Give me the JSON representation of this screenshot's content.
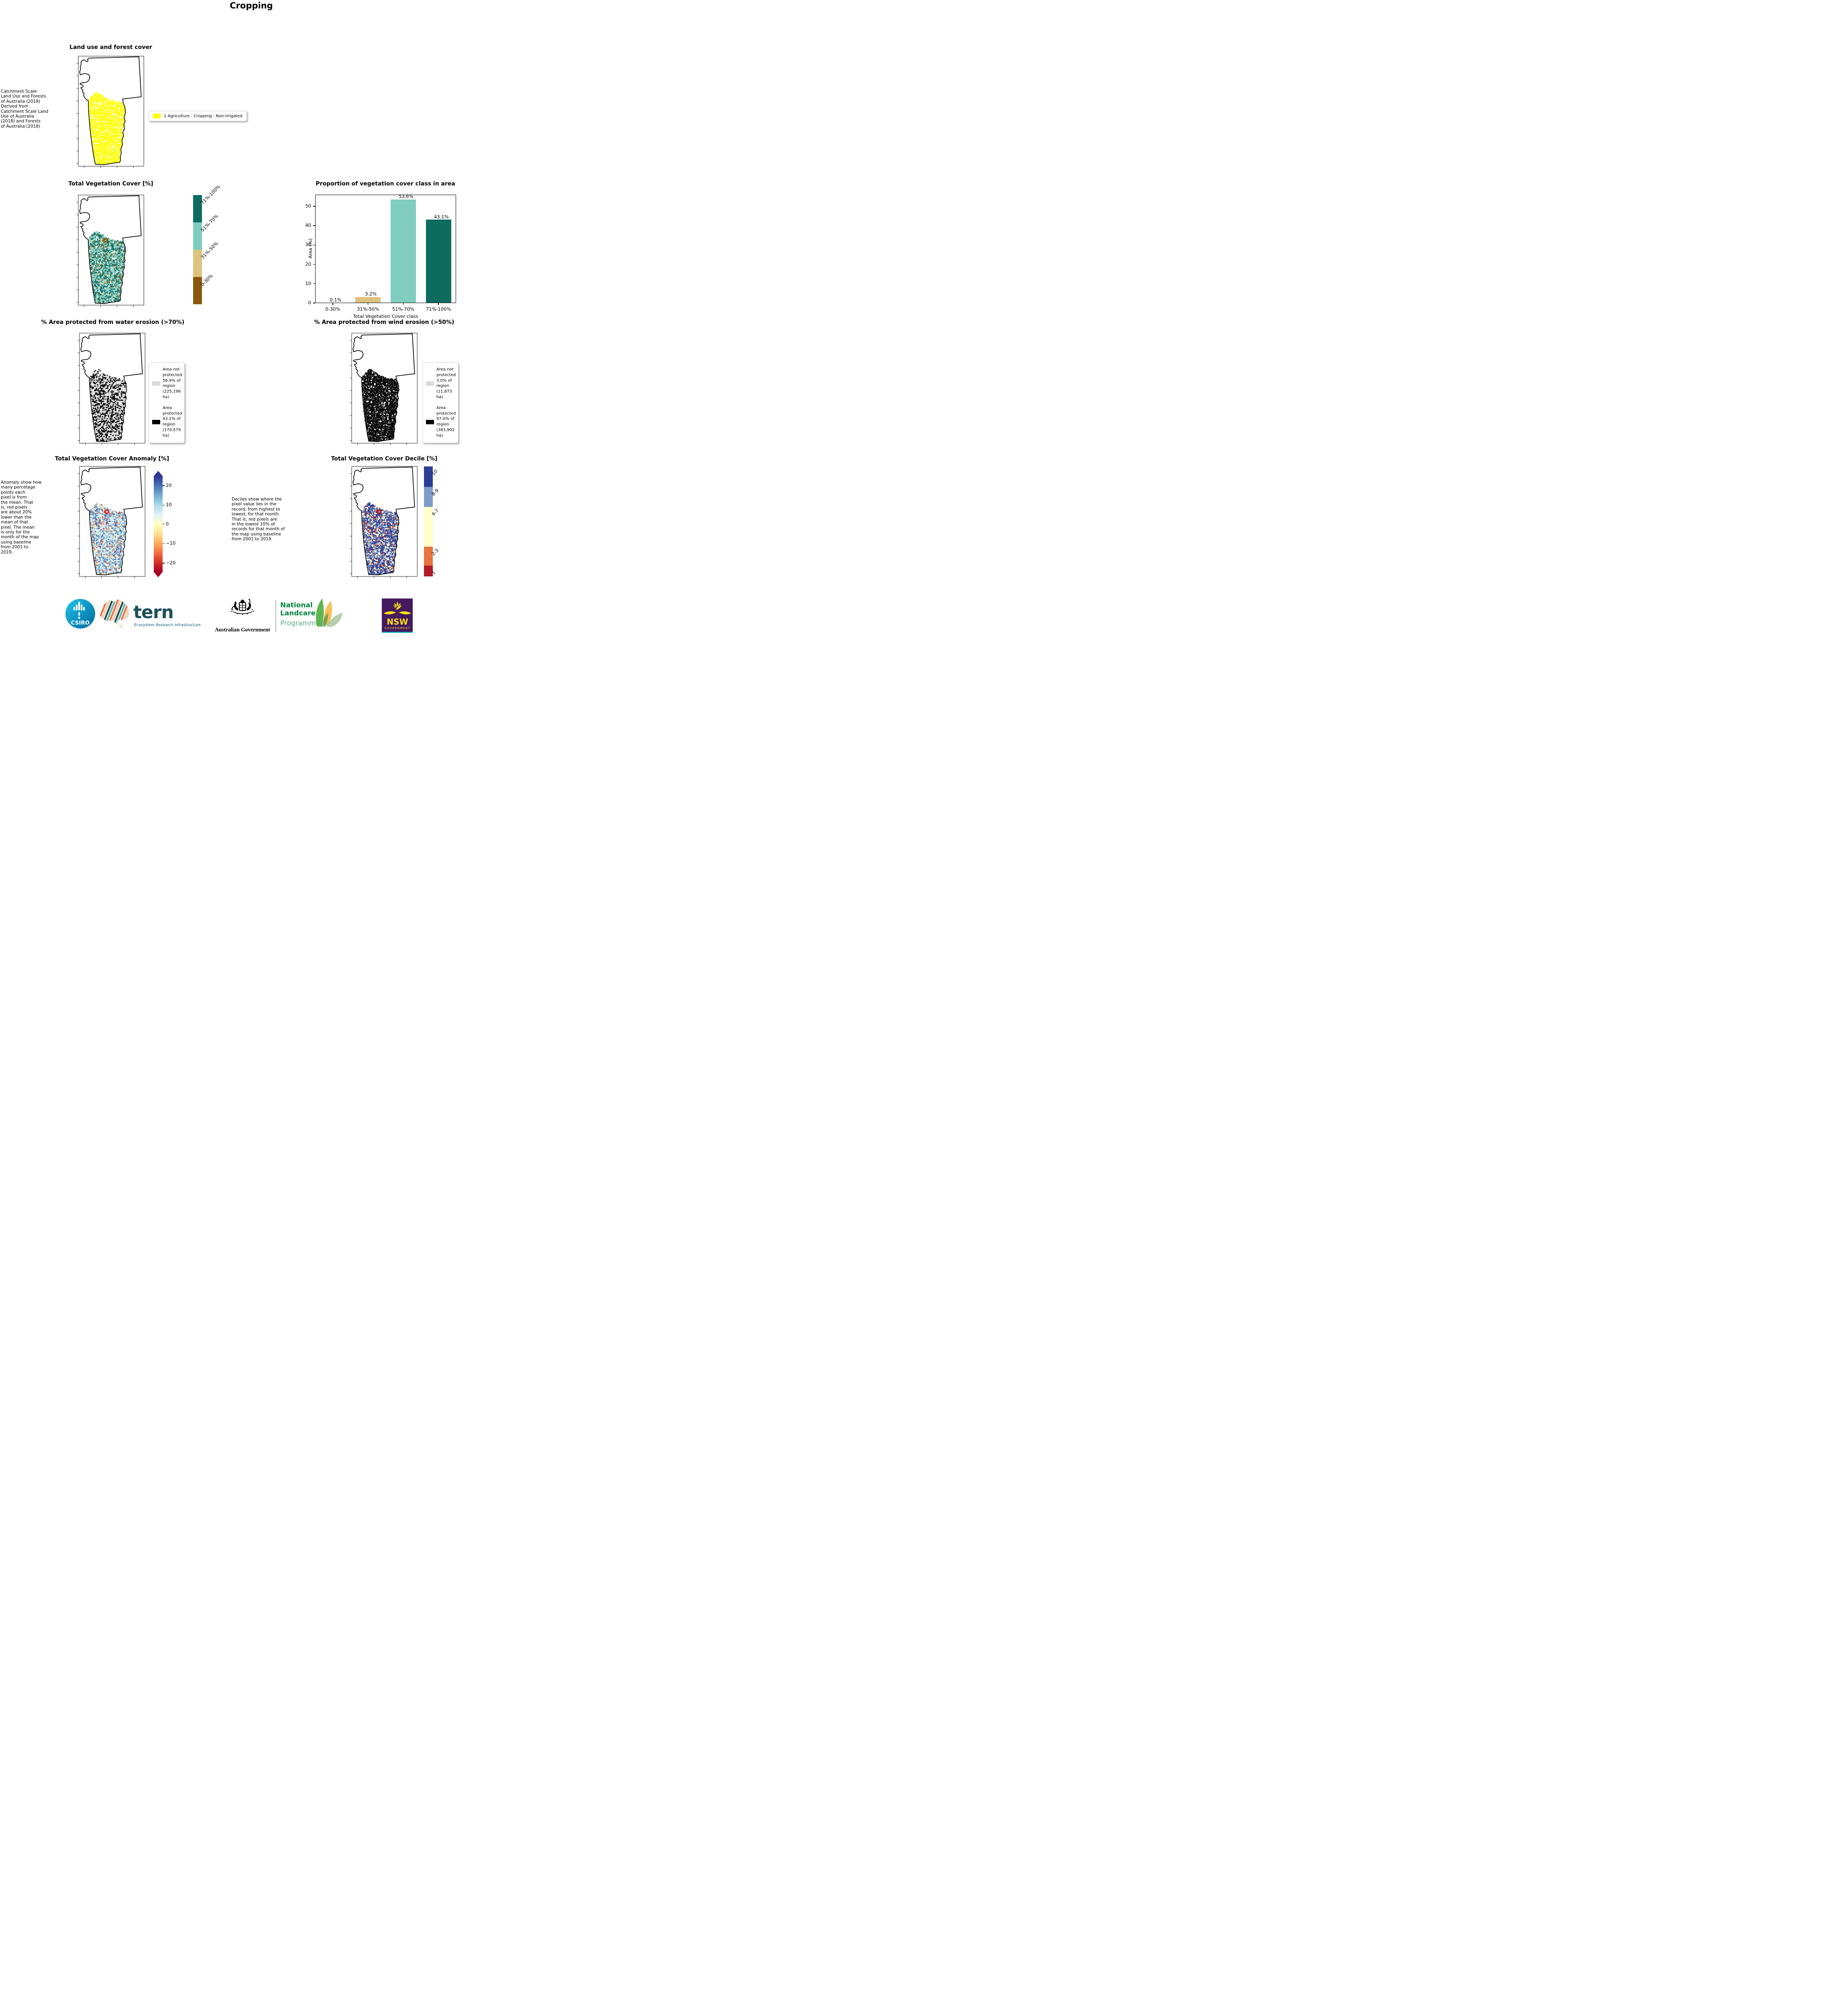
{
  "page_title": "Cropping",
  "panels": {
    "landuse": {
      "title": "Land use and forest cover",
      "caption": " Catchment Scale\nLand Use and Forests\nof Australia (2018)\nDerived from\nCatchment Scale Land\nUse of Australia\n(2018) and Forests\nof Australia (2018)",
      "legend": {
        "swatch_color": "#ffff00",
        "label": "1 Agriculture - Cropping - Non-irrigated"
      }
    },
    "tvc": {
      "title": "Total Vegetation Cover [%]",
      "colorbar": {
        "classes": [
          {
            "label": "71%-100%",
            "color": "#0d6b60"
          },
          {
            "label": "51%-70%",
            "color": "#7fcdbf"
          },
          {
            "label": "31%-50%",
            "color": "#dec37e"
          },
          {
            "label": "0-30%",
            "color": "#8a570c"
          }
        ]
      }
    },
    "water": {
      "title": "% Area protected from water erosion (>70%)",
      "legend": [
        {
          "color": "#d9d9d9",
          "label": "Area not\nprotected\n56.9% of\nregion\n(225,196\nha)"
        },
        {
          "color": "#000000",
          "label": "Area\nprotected\n43.1% of\nregion\n(170,579\nha)"
        }
      ]
    },
    "wind": {
      "title": "% Area protected from wind erosion (>50%)",
      "legend": [
        {
          "color": "#d9d9d9",
          "label": "Area not\nprotected\n3.0% of\nregion\n(11,873\nha)"
        },
        {
          "color": "#000000",
          "label": "Area\nprotected\n97.0% of\nregion\n(383,902\nha)"
        }
      ]
    },
    "anomaly": {
      "title": "Total Vegetation Cover Anomaly [%]",
      "caption": "Anomaly show how\nmany percetage\npoints each\npixel is from\nthe mean. That\nis, red pixels\nare about 20%\nlower than the\nmean of that\npixel. The mean\nis only for the\nmonth of the map\nusing baseline\nfrom 2001 to\n2019.",
      "colorbar": {
        "ticks": [
          "20",
          "10",
          "0",
          "−10",
          "−20"
        ],
        "gradient": [
          "#313695",
          "#4575b4",
          "#74add1",
          "#abd9e9",
          "#e0f3f8",
          "#ffffbf",
          "#fee090",
          "#fdae61",
          "#f46d43",
          "#d73027",
          "#a50026"
        ]
      }
    },
    "decile": {
      "title": "Total Vegetation Cover Decile [%]",
      "caption": "Deciles show where the\npixel value lies in the\nrecord, from highest to\nlowest, for that month.\nThat is, red pixels are\nin the lowest 10% of\nrecords for that month of\nthe map using baseline\nfrom 2001 to 2019.",
      "colorbar": {
        "classes": [
          {
            "label": "10",
            "color": "#2c3e94",
            "frac": 0.185
          },
          {
            "label": "8-9",
            "color": "#7d9dc9",
            "frac": 0.185
          },
          {
            "label": "4-7",
            "color": "#fffdc8",
            "frac": 0.36
          },
          {
            "label": "2-3",
            "color": "#e8743f",
            "frac": 0.17
          },
          {
            "label": "1",
            "color": "#b01b25",
            "frac": 0.1
          }
        ]
      }
    }
  },
  "chart_data": [
    {
      "type": "bar",
      "title": "Proportion of vegetation cover class in area",
      "categories": [
        "0-30%",
        "31%-50%",
        "51%-70%",
        "71%-100%"
      ],
      "values": [
        0.1,
        3.2,
        53.6,
        43.1
      ],
      "value_labels": [
        "0.1%",
        "3.2%",
        "53.6%",
        "43.1%"
      ],
      "bar_colors": [
        "#8a570c",
        "#dec37e",
        "#7fcdbf",
        "#0d6b60"
      ],
      "xlabel": "Total Vegetation Cover class",
      "ylabel": "Area (%)",
      "yticks": [
        0,
        10,
        20,
        30,
        40,
        50
      ],
      "ylim": [
        0,
        56
      ],
      "grid": false,
      "legend_position": "none"
    },
    {
      "type": "bar",
      "title": "% Area protected from water erosion (>70%)",
      "categories": [
        "Area not protected",
        "Area protected"
      ],
      "values": [
        56.9,
        43.1
      ],
      "values_ha": [
        225196,
        170579
      ],
      "ylabel": "% of region"
    },
    {
      "type": "bar",
      "title": "% Area protected from wind erosion (>50%)",
      "categories": [
        "Area not protected",
        "Area protected"
      ],
      "values": [
        3.0,
        97.0
      ],
      "values_ha": [
        11873,
        383902
      ],
      "ylabel": "% of region"
    }
  ],
  "footer": {
    "csiro": "CSIRO",
    "tern": "tern",
    "tern_sub": "Ecosystem Research Infrastructure",
    "aus_gov": "Australian Government",
    "landcare_line1": "National",
    "landcare_line2": "Landcare",
    "landcare_line3": "Programme",
    "nsw": "NSW",
    "nsw_sub": "GOVERNMENT"
  }
}
